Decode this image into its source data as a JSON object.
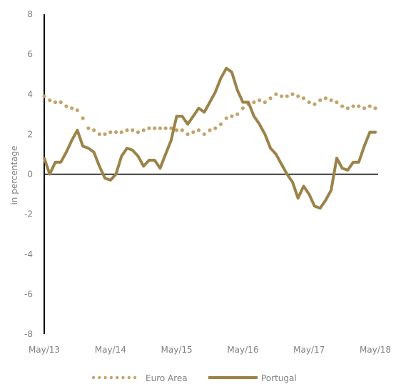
{
  "chart_data": {
    "type": "line",
    "ylabel": "in percentage",
    "ylim": [
      -8,
      8
    ],
    "y_ticks": [
      -8,
      -6,
      -4,
      -2,
      0,
      2,
      4,
      6,
      8
    ],
    "x_tick_labels": [
      "May/13",
      "May/14",
      "May/15",
      "May/16",
      "May/17",
      "May/18"
    ],
    "x_start": "2013-05",
    "x_end": "2018-05",
    "legend_position": "bottom-center",
    "series": [
      {
        "name": "Euro Area",
        "style": "dotted",
        "color": "#C2A46C",
        "x": [
          "2013-05",
          "2013-06",
          "2013-07",
          "2013-08",
          "2013-09",
          "2013-10",
          "2013-11",
          "2013-12",
          "2014-01",
          "2014-02",
          "2014-03",
          "2014-04",
          "2014-05",
          "2014-06",
          "2014-07",
          "2014-08",
          "2014-09",
          "2014-10",
          "2014-11",
          "2014-12",
          "2015-01",
          "2015-02",
          "2015-03",
          "2015-04",
          "2015-05",
          "2015-06",
          "2015-07",
          "2015-08",
          "2015-09",
          "2015-10",
          "2015-11",
          "2015-12",
          "2016-01",
          "2016-02",
          "2016-03",
          "2016-04",
          "2016-05",
          "2016-06",
          "2016-07",
          "2016-08",
          "2016-09",
          "2016-10",
          "2016-11",
          "2016-12",
          "2017-01",
          "2017-02",
          "2017-03",
          "2017-04",
          "2017-05",
          "2017-06",
          "2017-07",
          "2017-08",
          "2017-09",
          "2017-10",
          "2017-11",
          "2017-12",
          "2018-01",
          "2018-02",
          "2018-03",
          "2018-04",
          "2018-05"
        ],
        "y": [
          3.9,
          3.7,
          3.6,
          3.6,
          3.4,
          3.3,
          3.2,
          2.8,
          2.3,
          2.2,
          2.0,
          2.0,
          2.1,
          2.1,
          2.1,
          2.2,
          2.2,
          2.1,
          2.2,
          2.3,
          2.3,
          2.3,
          2.3,
          2.3,
          2.2,
          2.2,
          2.0,
          2.1,
          2.2,
          2.0,
          2.2,
          2.3,
          2.5,
          2.8,
          2.9,
          3.0,
          3.3,
          3.5,
          3.6,
          3.7,
          3.6,
          3.8,
          4.0,
          3.9,
          3.9,
          4.0,
          3.9,
          3.8,
          3.6,
          3.5,
          3.7,
          3.8,
          3.7,
          3.6,
          3.4,
          3.3,
          3.4,
          3.4,
          3.3,
          3.4,
          3.3
        ]
      },
      {
        "name": "Portugal",
        "style": "solid",
        "color": "#9B8348",
        "x": [
          "2013-05",
          "2013-06",
          "2013-07",
          "2013-08",
          "2013-09",
          "2013-10",
          "2013-11",
          "2013-12",
          "2014-01",
          "2014-02",
          "2014-03",
          "2014-04",
          "2014-05",
          "2014-06",
          "2014-07",
          "2014-08",
          "2014-09",
          "2014-10",
          "2014-11",
          "2014-12",
          "2015-01",
          "2015-02",
          "2015-03",
          "2015-04",
          "2015-05",
          "2015-06",
          "2015-07",
          "2015-08",
          "2015-09",
          "2015-10",
          "2015-11",
          "2015-12",
          "2016-01",
          "2016-02",
          "2016-03",
          "2016-04",
          "2016-05",
          "2016-06",
          "2016-07",
          "2016-08",
          "2016-09",
          "2016-10",
          "2016-11",
          "2016-12",
          "2017-01",
          "2017-02",
          "2017-03",
          "2017-04",
          "2017-05",
          "2017-06",
          "2017-07",
          "2017-08",
          "2017-09",
          "2017-10",
          "2017-11",
          "2017-12",
          "2018-01",
          "2018-02",
          "2018-03",
          "2018-04",
          "2018-05"
        ],
        "y": [
          0.8,
          0.0,
          0.6,
          0.6,
          1.1,
          1.7,
          2.2,
          1.4,
          1.3,
          1.1,
          0.4,
          -0.2,
          -0.3,
          0.0,
          0.9,
          1.3,
          1.2,
          0.9,
          0.4,
          0.7,
          0.7,
          0.3,
          1.0,
          1.7,
          2.9,
          2.9,
          2.5,
          2.9,
          3.3,
          3.1,
          3.6,
          4.1,
          4.8,
          5.3,
          5.1,
          4.2,
          3.6,
          3.6,
          2.9,
          2.5,
          2.0,
          1.3,
          1.0,
          0.5,
          0.0,
          -0.4,
          -1.2,
          -0.6,
          -1.0,
          -1.6,
          -1.7,
          -1.3,
          -0.8,
          0.8,
          0.3,
          0.2,
          0.6,
          0.6,
          1.4,
          2.1,
          2.1
        ]
      }
    ]
  }
}
